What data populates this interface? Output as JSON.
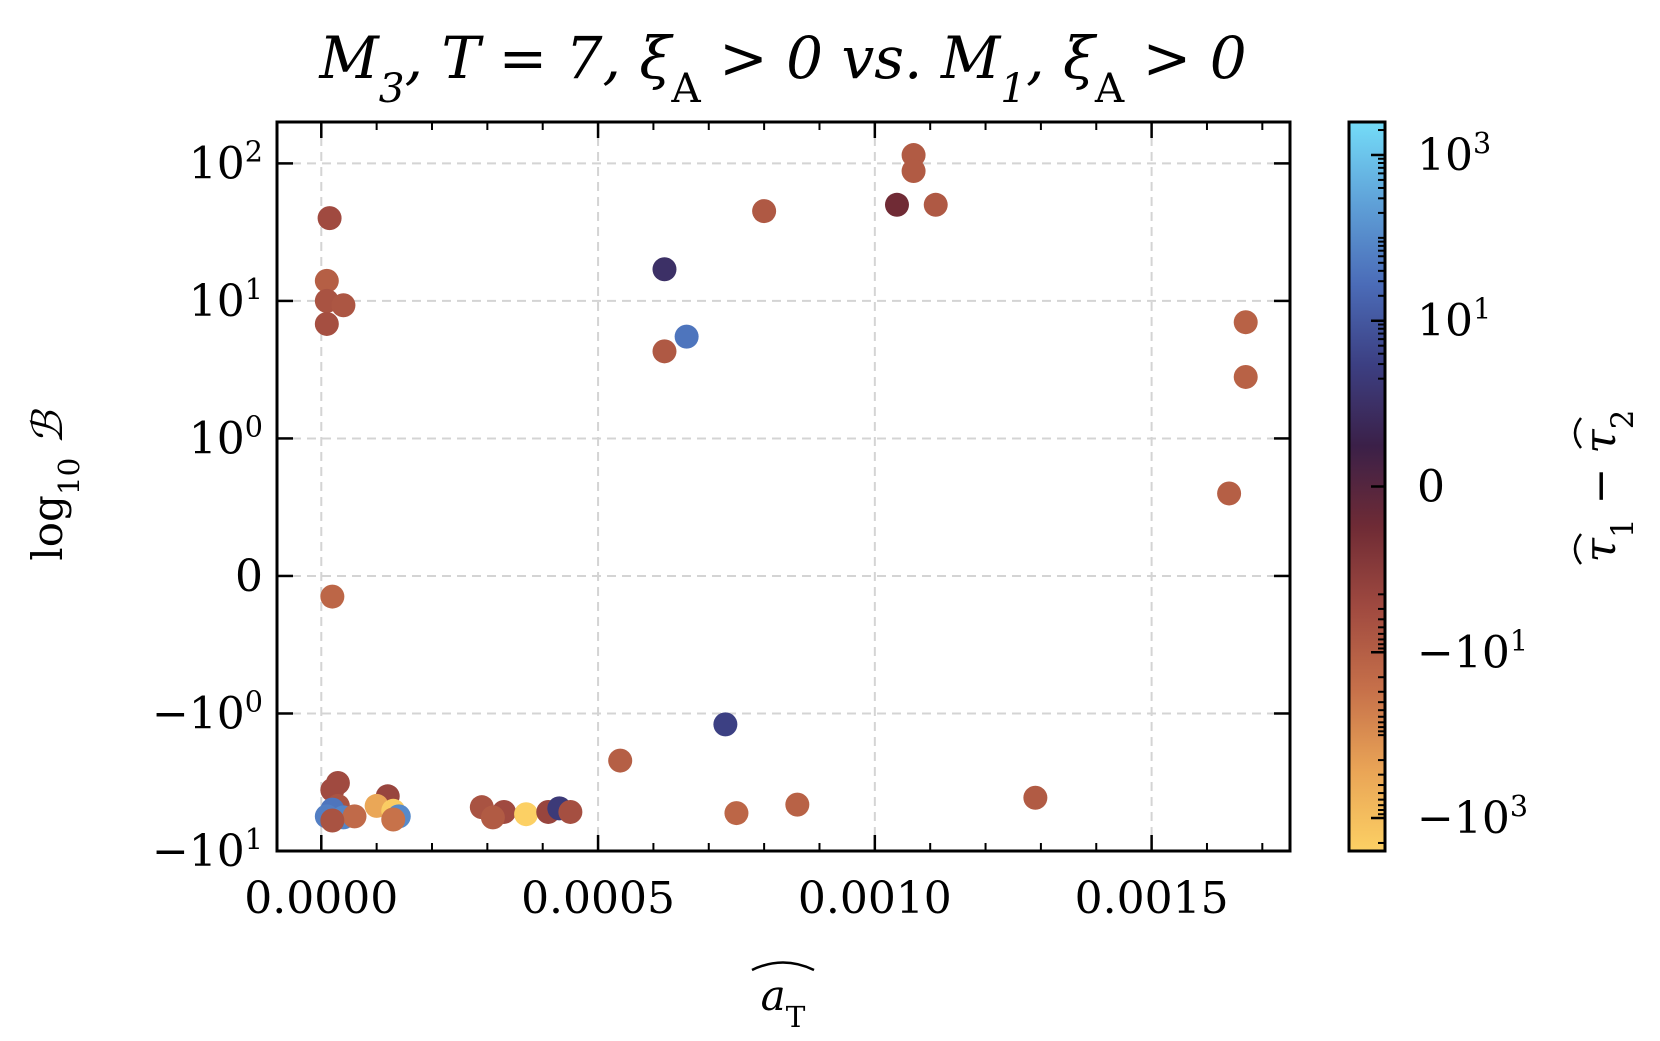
{
  "chart_data": {
    "type": "scatter",
    "title": "M₃, T = 7, ξₐ > 0 vs. M₁, ξₐ > 0",
    "title_html": "M<tspan baseline-shift='sub' font-size='70%'>3</tspan>, T = 7, ξ<tspan baseline-shift='sub' font-size='70%' font-style='normal'>A</tspan> &gt; 0 vs. M<tspan baseline-shift='sub' font-size='70%'>1</tspan>, ξ<tspan baseline-shift='sub' font-size='70%' font-style='normal'>A</tspan> &gt; 0",
    "xlabel": "âₜ",
    "ylabel": "log₁₀ ℬ",
    "colorbar_label": "τ̂₁ − τ̂₂",
    "xlim": [
      -8e-05,
      0.00175
    ],
    "x_ticks": [
      0.0,
      0.0005,
      0.001,
      0.0015
    ],
    "x_tick_labels": [
      "0.0000",
      "0.0005",
      "0.0010",
      "0.0015"
    ],
    "y_scale": "symlog",
    "ylim": [
      -10,
      200
    ],
    "y_ticks": [
      100,
      10,
      1,
      0,
      -1,
      -10
    ],
    "y_tick_labels": [
      "10^2",
      "10^1",
      "10^0",
      "0",
      "−10^0",
      "−10^1"
    ],
    "grid": true,
    "colorbar": {
      "scale": "symlog",
      "range": [
        -2500,
        2500
      ],
      "ticks": [
        1000,
        10,
        0,
        -10,
        -1000
      ],
      "tick_labels": [
        "10^3",
        "10^1",
        "0",
        "−10^1",
        "−10^3"
      ],
      "colors": [
        "#fcd064",
        "#e9a456",
        "#c6704a",
        "#a04a40",
        "#6f2b35",
        "#3b2048",
        "#3c3f82",
        "#4b6cb8",
        "#5fa1d8",
        "#74dcf8"
      ]
    },
    "points": [
      {
        "x": 1.5e-05,
        "y": 40,
        "c": -3
      },
      {
        "x": 1e-05,
        "y": 14,
        "c": -10
      },
      {
        "x": 1e-05,
        "y": 10,
        "c": -5
      },
      {
        "x": 4e-05,
        "y": 9.3,
        "c": -6
      },
      {
        "x": 1e-05,
        "y": 6.8,
        "c": -4
      },
      {
        "x": 2e-05,
        "y": -0.15,
        "c": -15
      },
      {
        "x": 3e-05,
        "y": -3.2,
        "c": -3
      },
      {
        "x": 2e-05,
        "y": -3.6,
        "c": -3
      },
      {
        "x": 3e-05,
        "y": -4.7,
        "c": -5
      },
      {
        "x": 2e-05,
        "y": -5.0,
        "c": 40
      },
      {
        "x": 1e-05,
        "y": -5.6,
        "c": 60
      },
      {
        "x": 4e-05,
        "y": -5.7,
        "c": 80
      },
      {
        "x": 6e-05,
        "y": -5.6,
        "c": -20
      },
      {
        "x": 2e-05,
        "y": -6.0,
        "c": -5
      },
      {
        "x": 0.00012,
        "y": -4.0,
        "c": -2
      },
      {
        "x": 0.0001,
        "y": -4.7,
        "c": -300
      },
      {
        "x": 0.00013,
        "y": -5.1,
        "c": -2000
      },
      {
        "x": 0.00014,
        "y": -5.6,
        "c": 100
      },
      {
        "x": 0.00013,
        "y": -5.9,
        "c": -30
      },
      {
        "x": 0.00029,
        "y": -4.8,
        "c": -5
      },
      {
        "x": 0.00033,
        "y": -5.2,
        "c": -3
      },
      {
        "x": 0.00031,
        "y": -5.7,
        "c": -8
      },
      {
        "x": 0.00037,
        "y": -5.4,
        "c": -2500
      },
      {
        "x": 0.00041,
        "y": -5.2,
        "c": -2
      },
      {
        "x": 0.00043,
        "y": -4.9,
        "c": 2
      },
      {
        "x": 0.00045,
        "y": -5.2,
        "c": -4
      },
      {
        "x": 0.00054,
        "y": -2.2,
        "c": -10
      },
      {
        "x": 0.00062,
        "y": 17,
        "c": 1
      },
      {
        "x": 0.00062,
        "y": 4.3,
        "c": -7
      },
      {
        "x": 0.00066,
        "y": 5.5,
        "c": 40
      },
      {
        "x": 0.00073,
        "y": -1.2,
        "c": 3
      },
      {
        "x": 0.00075,
        "y": -5.3,
        "c": -15
      },
      {
        "x": 0.0008,
        "y": 45,
        "c": -7
      },
      {
        "x": 0.00086,
        "y": -4.6,
        "c": -12
      },
      {
        "x": 0.00107,
        "y": 115,
        "c": -8
      },
      {
        "x": 0.00107,
        "y": 88,
        "c": -8
      },
      {
        "x": 0.00104,
        "y": 50,
        "c": -0.5
      },
      {
        "x": 0.00111,
        "y": 50,
        "c": -7
      },
      {
        "x": 0.00129,
        "y": -4.1,
        "c": -8
      },
      {
        "x": 0.00167,
        "y": 7.0,
        "c": -12
      },
      {
        "x": 0.00167,
        "y": 2.8,
        "c": -12
      },
      {
        "x": 0.00164,
        "y": 0.6,
        "c": -10
      }
    ]
  }
}
